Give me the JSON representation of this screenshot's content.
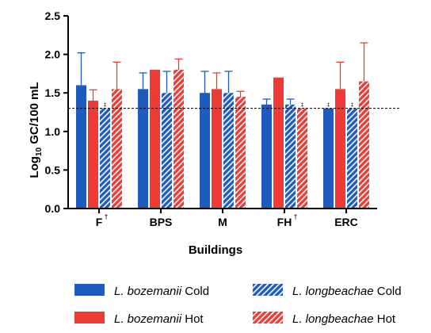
{
  "chart_data": {
    "type": "bar",
    "categories": [
      "F",
      "BPS",
      "M",
      "FH",
      "ERC"
    ],
    "category_marks": [
      "†",
      "",
      "",
      "†",
      ""
    ],
    "xlabel": "Buildings",
    "ylabel_main": "Log",
    "ylabel_sub": "10",
    "ylabel_rest": " GC/100 mL",
    "ylim": [
      0,
      2.5
    ],
    "yticks": [
      "0.0",
      "0.5",
      "1.0",
      "1.5",
      "2.0",
      "2.5"
    ],
    "threshold": 1.3,
    "significance_mark": "‡",
    "grid": false,
    "legend_position": "bottom",
    "series": [
      {
        "name_species": "L. bozemanii",
        "name_suffix": " Cold",
        "color": "#1f5bbf",
        "pattern": "solid",
        "values": [
          1.6,
          1.55,
          1.5,
          1.35,
          1.3
        ],
        "errors": [
          0.42,
          0.21,
          0.28,
          0.07,
          0.0
        ],
        "flags": [
          false,
          false,
          false,
          false,
          true
        ]
      },
      {
        "name_species": "L. bozemanii",
        "name_suffix": " Hot",
        "color": "#ee3b36",
        "pattern": "solid",
        "values": [
          1.4,
          1.8,
          1.55,
          1.7,
          1.55
        ],
        "errors": [
          0.14,
          0.0,
          0.21,
          0.0,
          0.35
        ],
        "flags": [
          false,
          false,
          false,
          false,
          false
        ]
      },
      {
        "name_species": "L. longbeachae",
        "name_suffix": " Cold",
        "color": "#1f5bbf",
        "pattern": "hatch",
        "values": [
          1.3,
          1.5,
          1.5,
          1.35,
          1.3
        ],
        "errors": [
          0.0,
          0.28,
          0.28,
          0.07,
          0.0
        ],
        "flags": [
          true,
          false,
          false,
          false,
          true
        ]
      },
      {
        "name_species": "L. longbeachae",
        "name_suffix": " Hot",
        "color": "#ee3b36",
        "pattern": "hatch",
        "values": [
          1.55,
          1.8,
          1.45,
          1.3,
          1.65
        ],
        "errors": [
          0.35,
          0.14,
          0.07,
          0.0,
          0.5
        ],
        "flags": [
          false,
          false,
          false,
          true,
          false
        ]
      }
    ]
  }
}
